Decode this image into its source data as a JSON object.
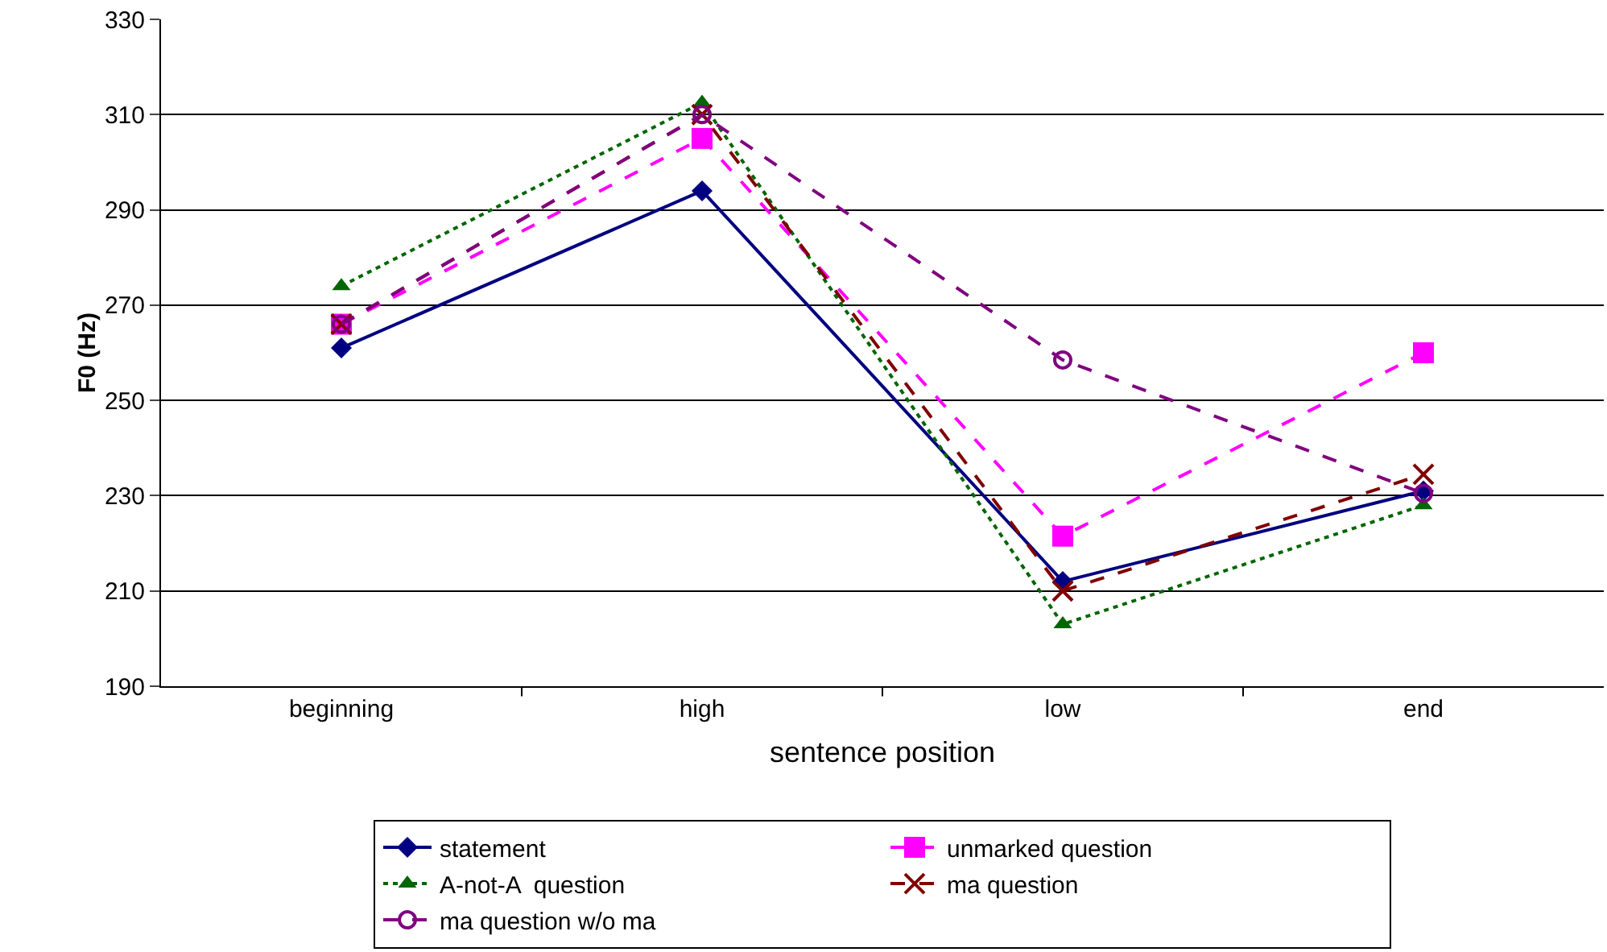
{
  "chart_data": {
    "type": "line",
    "xlabel": "sentence position",
    "ylabel": "F0 (Hz)",
    "categories": [
      "beginning",
      "high",
      "low",
      "end"
    ],
    "ylim": [
      190,
      330
    ],
    "yticks": [
      190,
      210,
      230,
      250,
      270,
      290,
      310,
      330
    ],
    "grid": "y",
    "legend": "bottom",
    "series": [
      {
        "name": "statement",
        "color": "#000080",
        "marker": "diamond",
        "line_style": "solid",
        "values": [
          261,
          294,
          212,
          231
        ]
      },
      {
        "name": "unmarked question",
        "color": "#ff00ff",
        "marker": "square",
        "line_style": "dashed",
        "values": [
          266,
          305,
          221.5,
          260
        ]
      },
      {
        "name": "A-not-A  question",
        "color": "#006600",
        "marker": "triangle",
        "line_style": "dotted",
        "values": [
          274,
          312.5,
          203,
          228
        ]
      },
      {
        "name": "ma question",
        "color": "#800000",
        "marker": "cross",
        "line_style": "dashed",
        "values": [
          266,
          310,
          210,
          234.5
        ]
      },
      {
        "name": "ma question w/o ma",
        "color": "#800080",
        "marker": "circle",
        "line_style": "dashed",
        "values": [
          266,
          310,
          258.5,
          230.5
        ]
      }
    ]
  }
}
